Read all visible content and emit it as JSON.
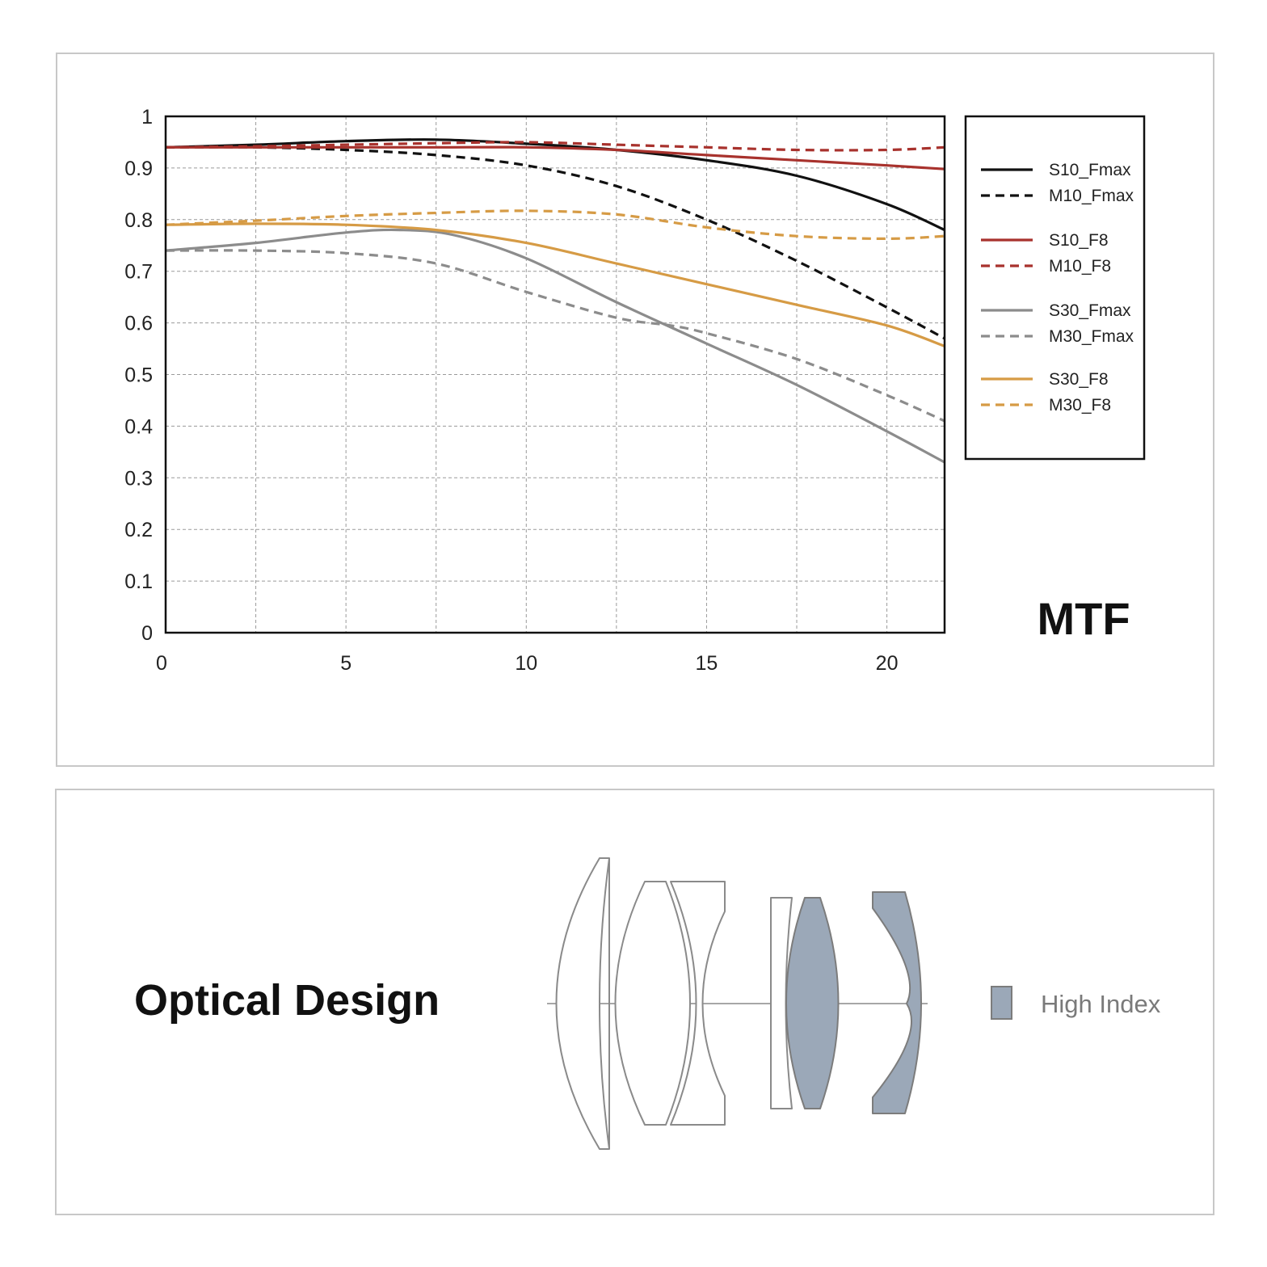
{
  "mtf_title": "MTF",
  "optical_title": "Optical Design",
  "lens_legend": {
    "label": "High Index",
    "color": "#9ba8b8"
  },
  "chart_data": {
    "type": "line",
    "title": "MTF",
    "xlim": [
      0,
      21.6
    ],
    "ylim": [
      0,
      1
    ],
    "x_ticks": [
      0,
      5,
      10,
      15,
      20
    ],
    "y_ticks": [
      0,
      0.1,
      0.2,
      0.3,
      0.4,
      0.5,
      0.6,
      0.7,
      0.8,
      0.9,
      1
    ],
    "x_tick_labels": [
      "0",
      "5",
      "10",
      "15",
      "20"
    ],
    "y_tick_labels": [
      "0",
      "0.1",
      "0.2",
      "0.3",
      "0.4",
      "0.5",
      "0.6",
      "0.7",
      "0.8",
      "0.9",
      "1"
    ],
    "grid": true,
    "legend_position": "right",
    "series": [
      {
        "name": "S10_Fmax",
        "color": "#111111",
        "dash": false,
        "x": [
          0,
          2.5,
          5,
          7.5,
          10,
          12.5,
          15,
          17.5,
          20,
          21.6
        ],
        "y": [
          0.94,
          0.945,
          0.952,
          0.955,
          0.947,
          0.935,
          0.915,
          0.885,
          0.83,
          0.78
        ]
      },
      {
        "name": "M10_Fmax",
        "color": "#111111",
        "dash": true,
        "x": [
          0,
          2.5,
          5,
          7.5,
          10,
          12.5,
          15,
          17.5,
          20,
          21.6
        ],
        "y": [
          0.94,
          0.94,
          0.935,
          0.925,
          0.905,
          0.865,
          0.8,
          0.72,
          0.63,
          0.57
        ]
      },
      {
        "name": "S10_F8",
        "color": "#a8322d",
        "dash": false,
        "x": [
          0,
          2.5,
          5,
          7.5,
          10,
          12.5,
          15,
          17.5,
          20,
          21.6
        ],
        "y": [
          0.94,
          0.94,
          0.94,
          0.94,
          0.94,
          0.935,
          0.925,
          0.915,
          0.905,
          0.898
        ]
      },
      {
        "name": "M10_F8",
        "color": "#a8322d",
        "dash": true,
        "x": [
          0,
          2.5,
          5,
          7.5,
          10,
          12.5,
          15,
          17.5,
          20,
          21.6
        ],
        "y": [
          0.94,
          0.942,
          0.945,
          0.948,
          0.95,
          0.945,
          0.94,
          0.935,
          0.935,
          0.94
        ]
      },
      {
        "name": "S30_Fmax",
        "color": "#8c8c8c",
        "dash": false,
        "x": [
          0,
          2.5,
          5,
          6.5,
          8,
          10,
          12.5,
          15,
          17.5,
          20,
          21.6
        ],
        "y": [
          0.74,
          0.755,
          0.775,
          0.78,
          0.77,
          0.725,
          0.64,
          0.56,
          0.48,
          0.39,
          0.33
        ]
      },
      {
        "name": "M30_Fmax",
        "color": "#8c8c8c",
        "dash": true,
        "x": [
          0,
          2.5,
          5,
          7.5,
          10,
          12.5,
          14,
          15,
          17.5,
          20,
          21.6
        ],
        "y": [
          0.74,
          0.74,
          0.735,
          0.715,
          0.66,
          0.61,
          0.595,
          0.58,
          0.53,
          0.46,
          0.41
        ]
      },
      {
        "name": "S30_F8",
        "color": "#d69b45",
        "dash": false,
        "x": [
          0,
          2.5,
          5,
          7.5,
          10,
          12.5,
          15,
          17.5,
          20,
          21.6
        ],
        "y": [
          0.79,
          0.792,
          0.79,
          0.78,
          0.755,
          0.715,
          0.675,
          0.635,
          0.595,
          0.555
        ]
      },
      {
        "name": "M30_F8",
        "color": "#d69b45",
        "dash": true,
        "x": [
          0,
          2.5,
          5,
          7.5,
          10,
          12.5,
          15,
          17.5,
          20,
          21.6
        ],
        "y": [
          0.79,
          0.798,
          0.807,
          0.813,
          0.817,
          0.81,
          0.785,
          0.768,
          0.763,
          0.768
        ]
      }
    ]
  }
}
